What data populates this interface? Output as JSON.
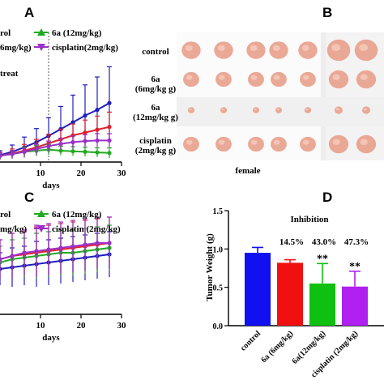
{
  "panels": {
    "A": {
      "letter": "A"
    },
    "B": {
      "letter": "B"
    },
    "C": {
      "letter": "C"
    },
    "D": {
      "letter": "D"
    }
  },
  "panel_b": {
    "rows": [
      {
        "label_line1": "control",
        "label_line2": ""
      },
      {
        "label_line1": "6a",
        "label_line2": "(6mg/kg g)"
      },
      {
        "label_line1": "6a",
        "label_line2": "(12mg/kg g)"
      },
      {
        "label_line1": "cisplatin",
        "label_line2": "(2mg/kg g)"
      }
    ],
    "caption": "female"
  },
  "chart_data": [
    {
      "type": "line",
      "panel": "A",
      "xlabel": "days",
      "xticks": [
        "10",
        "20",
        "30"
      ],
      "xlim": [
        0,
        30
      ],
      "ylim": [
        0,
        1000
      ],
      "annotation": "treat",
      "treatment_day": 12,
      "legend": [
        {
          "text": "rol",
          "color": "#1f1fbf"
        },
        {
          "text": "6a (12mg/kg)",
          "color": "#22aa22"
        },
        {
          "text": "6mg/kg)",
          "color": "#e02030"
        },
        {
          "text": "cisplatin(2mg/kg)",
          "color": "#9b30c8"
        }
      ],
      "x": [
        0,
        3,
        6,
        9,
        12,
        15,
        18,
        21,
        24,
        27
      ],
      "series": [
        {
          "name": "control",
          "color": "#1f1fbf",
          "values": [
            60,
            90,
            130,
            175,
            230,
            290,
            350,
            410,
            460,
            520
          ],
          "err": [
            40,
            60,
            90,
            120,
            160,
            200,
            240,
            270,
            290,
            320
          ]
        },
        {
          "name": "6a (6mg/kg)",
          "color": "#e02030",
          "values": [
            55,
            75,
            100,
            130,
            165,
            200,
            235,
            260,
            285,
            310
          ],
          "err": [
            30,
            40,
            55,
            70,
            80,
            90,
            100,
            110,
            120,
            130
          ]
        },
        {
          "name": "6a (12mg/kg)",
          "color": "#22aa22",
          "values": [
            55,
            70,
            90,
            100,
            110,
            100,
            95,
            90,
            85,
            80
          ],
          "err": [
            25,
            30,
            40,
            45,
            45,
            40,
            40,
            40,
            40,
            45
          ]
        },
        {
          "name": "cisplatin(2mg/kg)",
          "color": "#9b30c8",
          "values": [
            55,
            70,
            90,
            115,
            140,
            160,
            175,
            185,
            190,
            190
          ],
          "err": [
            25,
            30,
            35,
            40,
            45,
            50,
            55,
            55,
            60,
            60
          ]
        }
      ]
    },
    {
      "type": "line",
      "panel": "C",
      "xlabel": "days",
      "xticks": [
        "10",
        "20",
        "30"
      ],
      "xlim": [
        0,
        30
      ],
      "ylim": [
        0,
        30
      ],
      "legend": [
        {
          "text": "rol",
          "color": "#1f1fbf"
        },
        {
          "text": "6a (12mg/kg)",
          "color": "#22aa22"
        },
        {
          "text": "mg/kg)",
          "color": "#e02030"
        },
        {
          "text": "cisplatin (2mg/kg)",
          "color": "#9b30c8"
        }
      ],
      "x": [
        0,
        3,
        6,
        9,
        12,
        15,
        18,
        21,
        24,
        27
      ],
      "series": [
        {
          "name": "control",
          "color": "#1f1fbf",
          "values": [
            14,
            14.5,
            15,
            15.5,
            16,
            16.5,
            17,
            17.5,
            18,
            18.5
          ],
          "err": [
            5,
            6,
            6,
            7,
            7,
            7,
            7,
            7,
            7,
            7
          ]
        },
        {
          "name": "6a (6mg/kg)",
          "color": "#e02030",
          "values": [
            17,
            18,
            18.5,
            19,
            19.5,
            20,
            20.5,
            21,
            21.5,
            22
          ],
          "err": [
            6,
            7,
            7,
            8,
            8,
            8,
            8,
            8,
            8,
            8
          ]
        },
        {
          "name": "6a (12mg/kg)",
          "color": "#22aa22",
          "values": [
            16,
            17,
            17.5,
            18,
            18.5,
            19,
            19,
            19.5,
            20,
            20.5
          ],
          "err": [
            5,
            6,
            6,
            7,
            7,
            7,
            7,
            7,
            7,
            7
          ]
        },
        {
          "name": "cisplatin (2mg/kg)",
          "color": "#9b30c8",
          "values": [
            17,
            18,
            19,
            19.5,
            20,
            20.5,
            21,
            21.5,
            22,
            22
          ],
          "err": [
            6,
            7,
            7,
            8,
            8,
            8,
            8,
            8,
            8,
            8
          ]
        }
      ]
    },
    {
      "type": "bar",
      "panel": "D",
      "title": "Inhibition",
      "ylabel": "Tumor Weight (g)",
      "ylim": [
        0,
        1.5
      ],
      "yticks": [
        "0.0",
        "0.5",
        "1.0",
        "1.5"
      ],
      "categories": [
        "control",
        "6a (6mg/kg)",
        "6a(12mg/kg)",
        "cisplatin (2mg/kg)"
      ],
      "values": [
        0.95,
        0.82,
        0.55,
        0.51
      ],
      "err": [
        0.07,
        0.04,
        0.26,
        0.2
      ],
      "colors": [
        "#1010f0",
        "#f01010",
        "#10c010",
        "#b020f0"
      ],
      "inhibition": [
        "",
        "14.5%",
        "43.0%",
        "47.3%"
      ],
      "significance": [
        "",
        "",
        "**",
        "**"
      ]
    }
  ]
}
